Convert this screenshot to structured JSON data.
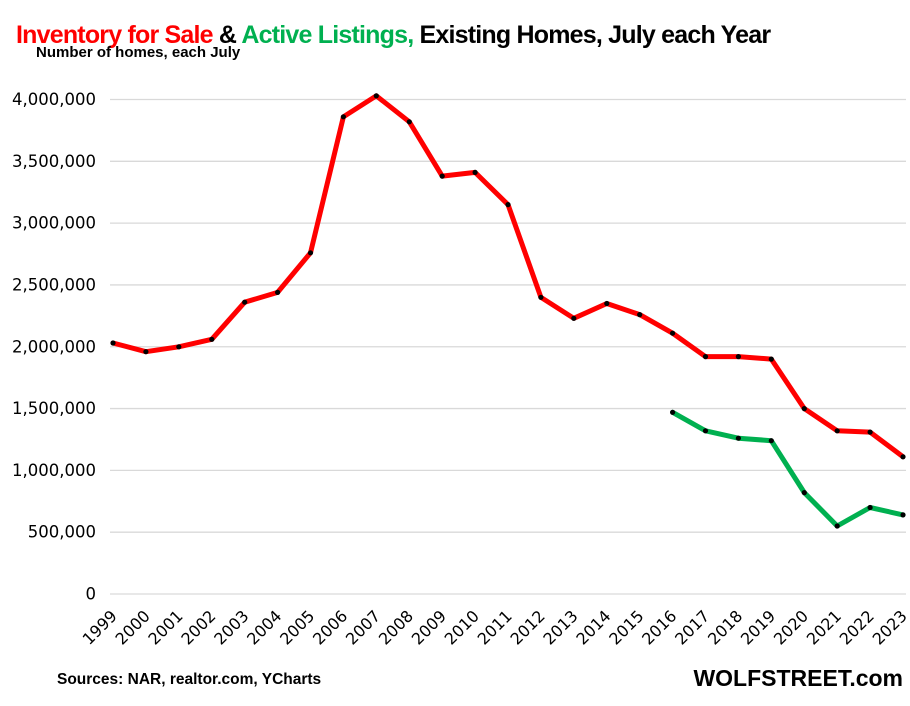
{
  "header": {
    "title_segments": [
      {
        "text": "Inventory for Sale ",
        "color": "#ff0000"
      },
      {
        "text": "& ",
        "color": "#000000"
      },
      {
        "text": "Active Listings, ",
        "color": "#00b050"
      },
      {
        "text": "Existing Homes, July each Year",
        "color": "#000000"
      }
    ],
    "subtitle": "Number of homes, each July"
  },
  "footer": {
    "sources": "Sources: NAR, realtor.com, YCharts",
    "brand": "WOLFSTREET.com"
  },
  "chart_data": {
    "type": "line",
    "x": [
      1999,
      2000,
      2001,
      2002,
      2003,
      2004,
      2005,
      2006,
      2007,
      2008,
      2009,
      2010,
      2011,
      2012,
      2013,
      2014,
      2015,
      2016,
      2017,
      2018,
      2019,
      2020,
      2021,
      2022,
      2023
    ],
    "series": [
      {
        "name": "Inventory for Sale",
        "color": "#ff0000",
        "values": [
          2030000,
          1960000,
          2000000,
          2060000,
          2360000,
          2440000,
          2760000,
          3860000,
          4030000,
          3820000,
          3380000,
          3410000,
          3150000,
          2400000,
          2230000,
          2350000,
          2260000,
          2110000,
          1920000,
          1920000,
          1900000,
          1500000,
          1320000,
          1310000,
          1110000
        ]
      },
      {
        "name": "Active Listings",
        "color": "#00b050",
        "values": [
          null,
          null,
          null,
          null,
          null,
          null,
          null,
          null,
          null,
          null,
          null,
          null,
          null,
          null,
          null,
          null,
          null,
          1470000,
          1320000,
          1260000,
          1240000,
          820000,
          550000,
          700000,
          640000
        ]
      }
    ],
    "title": "Inventory for Sale & Active Listings, Existing Homes, July each Year",
    "xlabel": "",
    "ylabel": "Number of homes, each July",
    "ylim": [
      0,
      4000000
    ],
    "ytick_step": 500000,
    "ytick_labels": [
      "0",
      "500,000",
      "1,000,000",
      "1,500,000",
      "2,000,000",
      "2,500,000",
      "3,000,000",
      "3,500,000",
      "4,000,000"
    ],
    "grid": true,
    "gridline_color": "#d9d9d9",
    "marker_color": "#000000",
    "legend_position": "none"
  }
}
